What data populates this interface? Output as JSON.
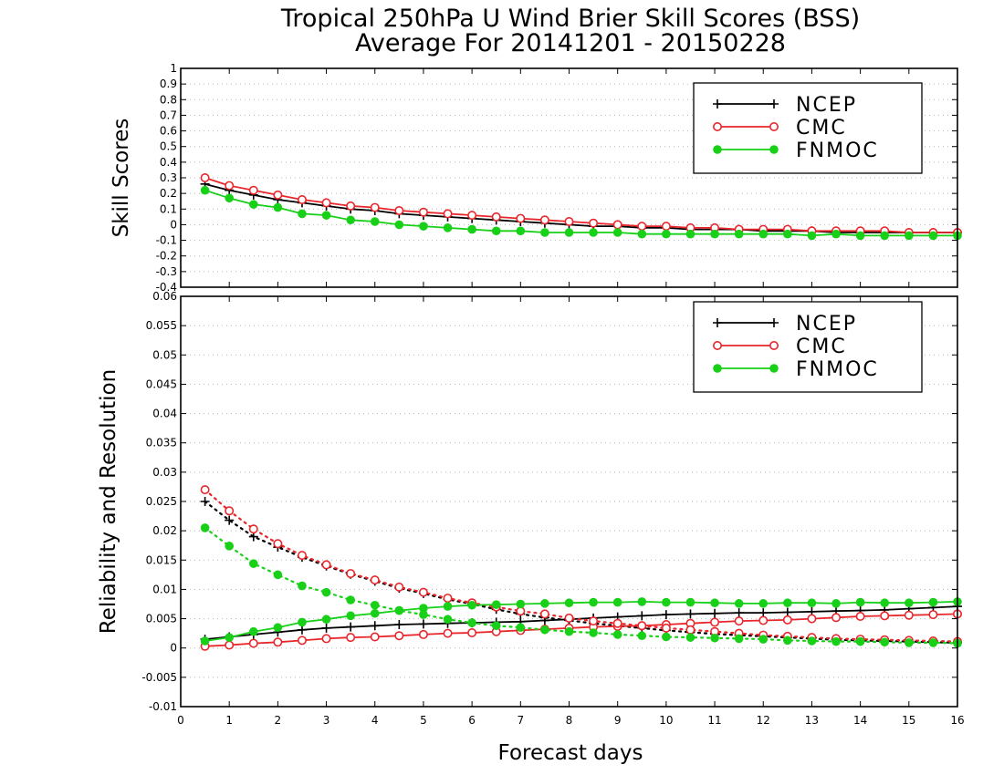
{
  "chart_data": [
    {
      "type": "line",
      "title": "Tropical 250hPa U Wind Brier Skill Scores (BSS)",
      "subtitle": "Average For 20141201 - 20150228",
      "ylabel": "Skill Scores",
      "xlim": [
        0,
        16
      ],
      "ylim": [
        -0.4,
        1.0
      ],
      "y_ticks": [
        "-0.4",
        "-0.3",
        "-0.2",
        "-0.1",
        "0",
        "0.1",
        "0.2",
        "0.3",
        "0.4",
        "0.5",
        "0.6",
        "0.7",
        "0.8",
        "0.9",
        "1"
      ],
      "grid": true,
      "legend_position": "top-right",
      "x": [
        0.5,
        1,
        1.5,
        2,
        2.5,
        3,
        3.5,
        4,
        4.5,
        5,
        5.5,
        6,
        6.5,
        7,
        7.5,
        8,
        8.5,
        9,
        9.5,
        10,
        10.5,
        11,
        11.5,
        12,
        12.5,
        13,
        13.5,
        14,
        14.5,
        15,
        15.5,
        16
      ],
      "series": [
        {
          "name": "NCEP",
          "color": "#000000",
          "marker": "plus",
          "values": [
            0.26,
            0.22,
            0.19,
            0.16,
            0.14,
            0.12,
            0.1,
            0.09,
            0.07,
            0.06,
            0.05,
            0.04,
            0.03,
            0.02,
            0.01,
            0.0,
            -0.01,
            -0.01,
            -0.02,
            -0.02,
            -0.03,
            -0.03,
            -0.03,
            -0.04,
            -0.04,
            -0.04,
            -0.05,
            -0.05,
            -0.05,
            -0.05,
            -0.05,
            -0.05
          ]
        },
        {
          "name": "CMC",
          "color": "#e8262b",
          "marker": "open-circle",
          "values": [
            0.3,
            0.25,
            0.22,
            0.19,
            0.16,
            0.14,
            0.12,
            0.11,
            0.09,
            0.08,
            0.07,
            0.06,
            0.05,
            0.04,
            0.03,
            0.02,
            0.01,
            0.0,
            -0.01,
            -0.01,
            -0.02,
            -0.02,
            -0.03,
            -0.03,
            -0.03,
            -0.04,
            -0.04,
            -0.04,
            -0.04,
            -0.05,
            -0.05,
            -0.05
          ]
        },
        {
          "name": "FNMOC",
          "color": "#17d017",
          "marker": "filled-circle",
          "values": [
            0.22,
            0.17,
            0.13,
            0.11,
            0.07,
            0.06,
            0.03,
            0.02,
            0.0,
            -0.01,
            -0.02,
            -0.03,
            -0.04,
            -0.04,
            -0.05,
            -0.05,
            -0.05,
            -0.05,
            -0.06,
            -0.06,
            -0.06,
            -0.06,
            -0.06,
            -0.06,
            -0.06,
            -0.07,
            -0.06,
            -0.07,
            -0.07,
            -0.07,
            -0.07,
            -0.07
          ]
        }
      ]
    },
    {
      "type": "line",
      "ylabel": "Reliability and Resolution",
      "xlabel": "Forecast days",
      "xlim": [
        0,
        16
      ],
      "x_ticks": [
        "0",
        "1",
        "2",
        "3",
        "4",
        "5",
        "6",
        "7",
        "8",
        "9",
        "10",
        "11",
        "12",
        "13",
        "14",
        "15",
        "16"
      ],
      "ylim": [
        -0.01,
        0.06
      ],
      "y_ticks": [
        "-0.01",
        "-0.005",
        "0",
        "0.005",
        "0.01",
        "0.015",
        "0.02",
        "0.025",
        "0.03",
        "0.035",
        "0.04",
        "0.045",
        "0.05",
        "0.055",
        "0.06"
      ],
      "grid": true,
      "legend_position": "top-right",
      "x": [
        0.5,
        1,
        1.5,
        2,
        2.5,
        3,
        3.5,
        4,
        4.5,
        5,
        5.5,
        6,
        6.5,
        7,
        7.5,
        8,
        8.5,
        9,
        9.5,
        10,
        10.5,
        11,
        11.5,
        12,
        12.5,
        13,
        13.5,
        14,
        14.5,
        15,
        15.5,
        16
      ],
      "series": [
        {
          "name": "NCEP",
          "color": "#000000",
          "marker": "plus",
          "line": "solid",
          "values": [
            0.0015,
            0.0019,
            0.0023,
            0.0027,
            0.0031,
            0.0034,
            0.0036,
            0.0038,
            0.004,
            0.0041,
            0.0042,
            0.0043,
            0.0044,
            0.0045,
            0.0047,
            0.0049,
            0.0051,
            0.0053,
            0.0055,
            0.0057,
            0.0058,
            0.0059,
            0.006,
            0.006,
            0.0061,
            0.0062,
            0.0063,
            0.0064,
            0.0065,
            0.0067,
            0.0069,
            0.0071
          ]
        },
        {
          "name": "NCEP",
          "color": "#000000",
          "marker": "plus",
          "line": "dotted",
          "values": [
            0.025,
            0.0218,
            0.019,
            0.0172,
            0.0155,
            0.014,
            0.0126,
            0.0114,
            0.0102,
            0.0093,
            0.0083,
            0.0075,
            0.0066,
            0.0058,
            0.0052,
            0.0047,
            0.0042,
            0.0038,
            0.0034,
            0.003,
            0.0027,
            0.0024,
            0.0022,
            0.002,
            0.0018,
            0.0016,
            0.0014,
            0.0013,
            0.0012,
            0.0011,
            0.001,
            0.0009
          ]
        },
        {
          "name": "CMC",
          "color": "#e8262b",
          "marker": "open-circle",
          "line": "solid",
          "values": [
            0.0003,
            0.0005,
            0.0008,
            0.001,
            0.0013,
            0.0016,
            0.0018,
            0.0019,
            0.0021,
            0.0023,
            0.0025,
            0.0026,
            0.0028,
            0.003,
            0.0032,
            0.0034,
            0.0036,
            0.0037,
            0.0038,
            0.004,
            0.0042,
            0.0044,
            0.0046,
            0.0047,
            0.0048,
            0.005,
            0.0052,
            0.0054,
            0.0055,
            0.0056,
            0.0057,
            0.0058
          ]
        },
        {
          "name": "CMC",
          "color": "#e8262b",
          "marker": "open-circle",
          "line": "dotted",
          "values": [
            0.027,
            0.0234,
            0.0203,
            0.0178,
            0.0158,
            0.0142,
            0.0127,
            0.0116,
            0.0104,
            0.0095,
            0.0085,
            0.0077,
            0.007,
            0.0063,
            0.0058,
            0.0051,
            0.0046,
            0.0042,
            0.0038,
            0.0034,
            0.0031,
            0.0028,
            0.0025,
            0.0022,
            0.002,
            0.0018,
            0.0016,
            0.0015,
            0.0014,
            0.0013,
            0.0012,
            0.0011
          ]
        },
        {
          "name": "FNMOC",
          "color": "#17d017",
          "marker": "filled-circle",
          "line": "solid",
          "values": [
            0.0012,
            0.0018,
            0.0028,
            0.0035,
            0.0044,
            0.0049,
            0.0055,
            0.0059,
            0.0064,
            0.0068,
            0.0071,
            0.0073,
            0.0074,
            0.0075,
            0.0076,
            0.0077,
            0.0078,
            0.0078,
            0.0079,
            0.0078,
            0.0078,
            0.0077,
            0.0076,
            0.0076,
            0.0077,
            0.0077,
            0.0076,
            0.0078,
            0.0077,
            0.0077,
            0.0078,
            0.0079
          ]
        },
        {
          "name": "FNMOC",
          "color": "#17d017",
          "marker": "filled-circle",
          "line": "dotted",
          "values": [
            0.0205,
            0.0174,
            0.0144,
            0.0125,
            0.0106,
            0.0095,
            0.0082,
            0.0073,
            0.0064,
            0.0057,
            0.0049,
            0.0043,
            0.0038,
            0.0035,
            0.0031,
            0.0028,
            0.0026,
            0.0023,
            0.0021,
            0.0019,
            0.0018,
            0.0017,
            0.0016,
            0.0015,
            0.0013,
            0.0012,
            0.0011,
            0.0011,
            0.001,
            0.0009,
            0.0009,
            0.0008
          ]
        }
      ]
    }
  ]
}
